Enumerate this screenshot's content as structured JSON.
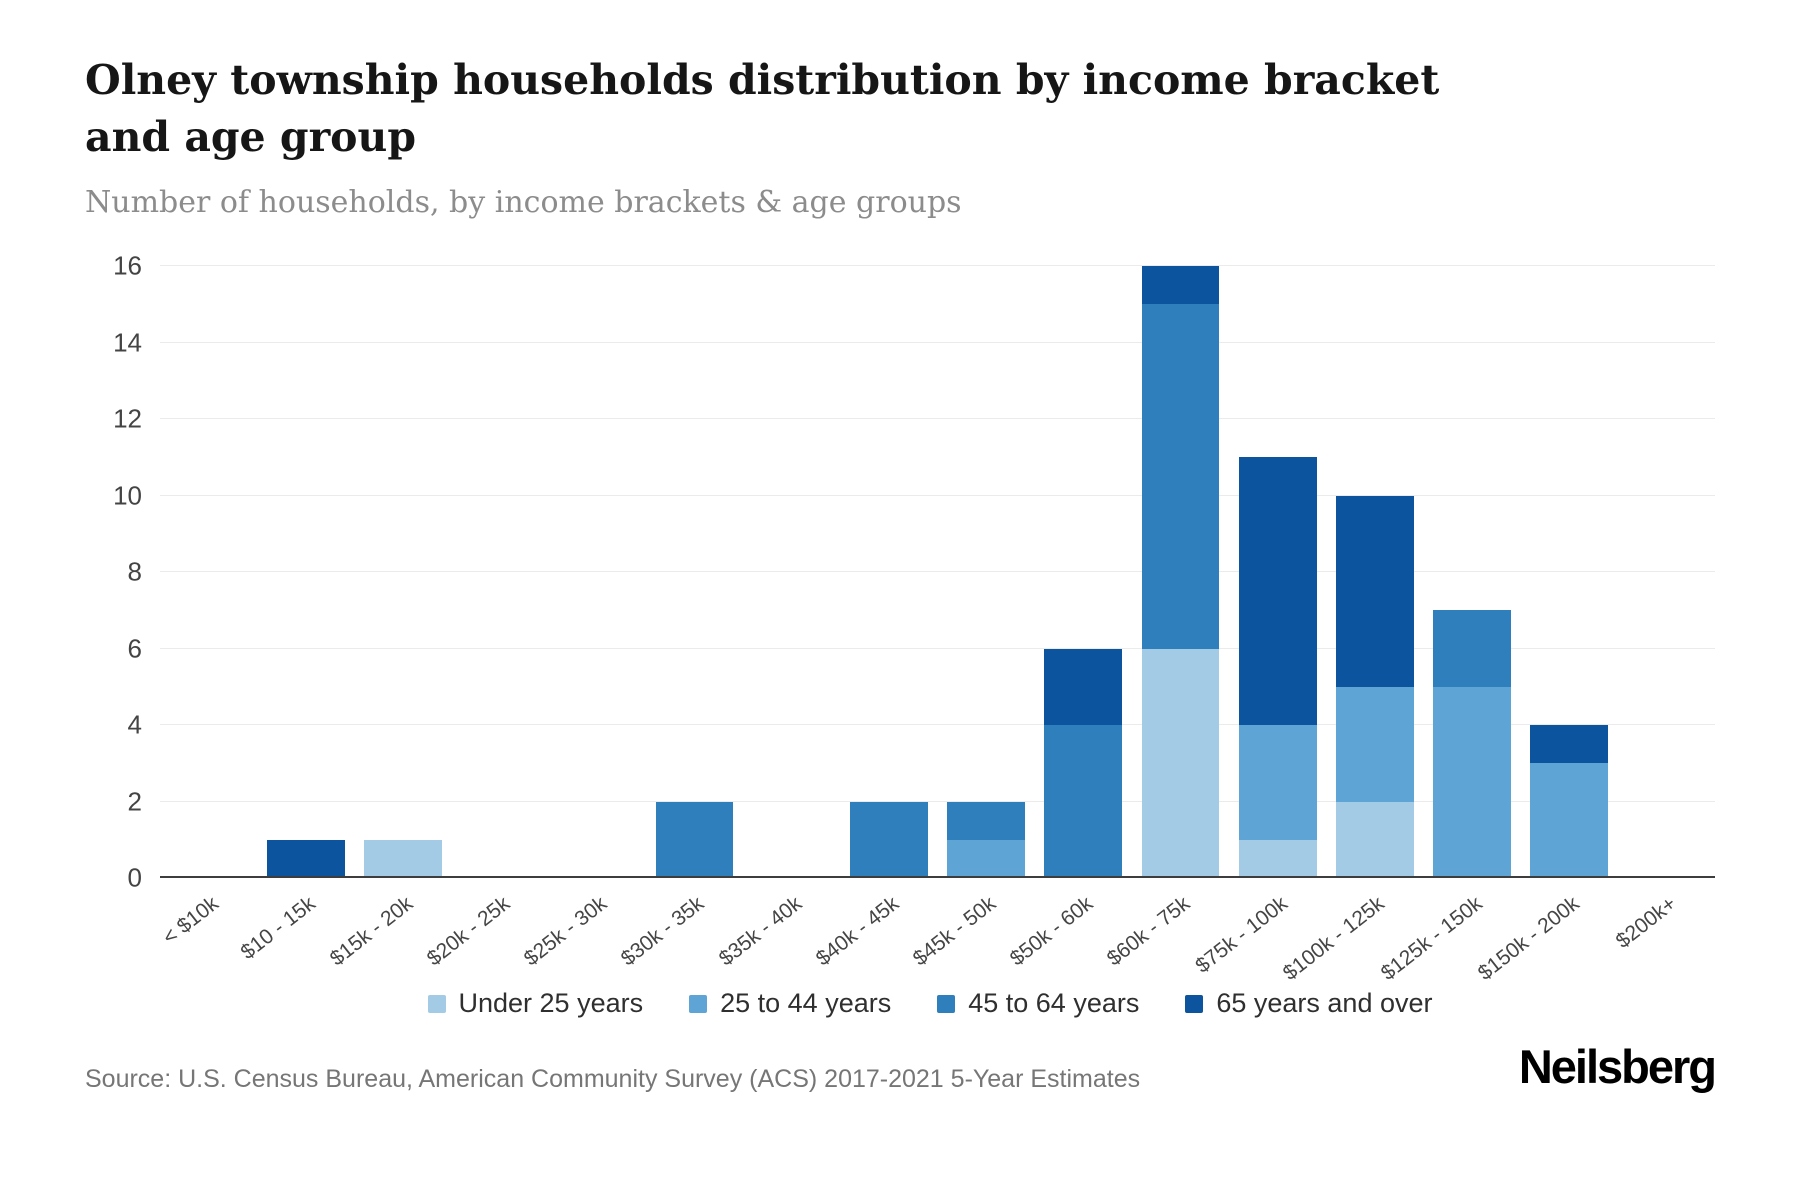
{
  "header": {
    "title": "Olney township households distribution by income bracket and age group",
    "subtitle": "Number of households, by income brackets & age groups"
  },
  "chart_data": {
    "type": "bar",
    "stacked": true,
    "title": "Olney township households distribution by income bracket and age group",
    "xlabel": "",
    "ylabel": "",
    "ylim": [
      0,
      16
    ],
    "ytick_step": 2,
    "grid": "horizontal",
    "legend_position": "bottom",
    "categories": [
      "< $10k",
      "$10 - 15k",
      "$15k - 20k",
      "$20k - 25k",
      "$25k - 30k",
      "$30k - 35k",
      "$35k - 40k",
      "$40k - 45k",
      "$45k - 50k",
      "$50k - 60k",
      "$60k - 75k",
      "$75k - 100k",
      "$100k - 125k",
      "$125k - 150k",
      "$150k - 200k",
      "$200k+"
    ],
    "series": [
      {
        "name": "Under 25 years",
        "color": "#a3cbe5",
        "values": [
          0,
          0,
          1,
          0,
          0,
          0,
          0,
          0,
          0,
          0,
          6,
          1,
          2,
          0,
          0,
          0
        ]
      },
      {
        "name": "25 to 44 years",
        "color": "#5ea4d4",
        "values": [
          0,
          0,
          0,
          0,
          0,
          0,
          0,
          0,
          1,
          0,
          0,
          3,
          3,
          5,
          3,
          0
        ]
      },
      {
        "name": "45 to 64 years",
        "color": "#2f7fbc",
        "values": [
          0,
          0,
          0,
          0,
          0,
          2,
          0,
          2,
          1,
          4,
          9,
          0,
          0,
          2,
          0,
          0
        ]
      },
      {
        "name": "65 years and over",
        "color": "#0d549e",
        "values": [
          0,
          1,
          0,
          0,
          0,
          0,
          0,
          0,
          0,
          2,
          1,
          7,
          5,
          0,
          1,
          0
        ]
      }
    ]
  },
  "footer": {
    "source": "Source: U.S. Census Bureau, American Community Survey (ACS) 2017-2021 5-Year Estimates",
    "brand": "Neilsberg"
  }
}
